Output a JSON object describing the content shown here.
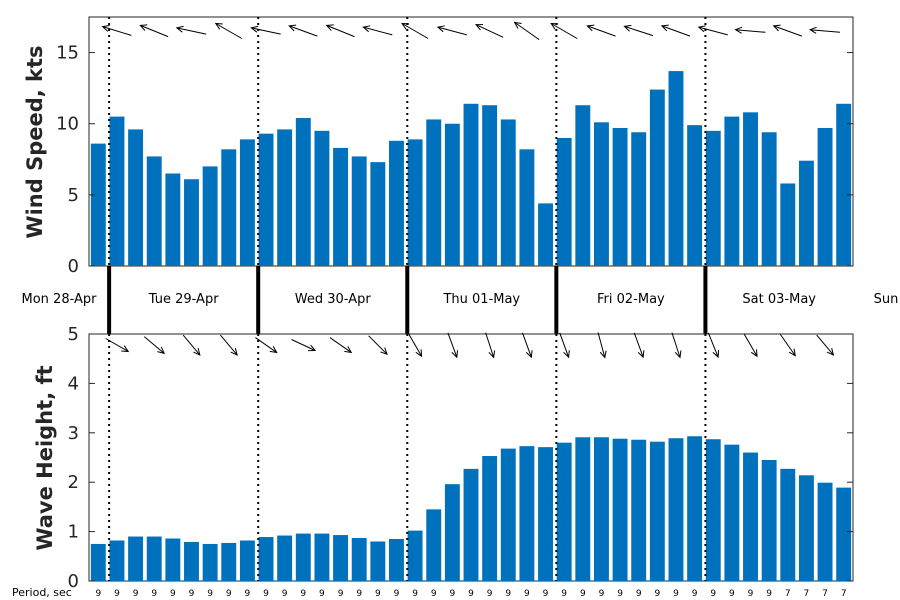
{
  "chart_data": [
    {
      "type": "bar",
      "ylabel": "Wind Speed, kts",
      "ylim": [
        0,
        17.5
      ],
      "yticks": [
        0,
        5,
        10,
        15
      ],
      "color": "#0072BD",
      "values": [
        8.6,
        10.5,
        9.6,
        7.7,
        6.5,
        6.1,
        7.0,
        8.2,
        8.9,
        9.3,
        9.6,
        10.4,
        9.5,
        8.3,
        7.7,
        7.3,
        8.8,
        8.9,
        10.3,
        10.0,
        11.4,
        11.3,
        10.3,
        8.2,
        4.4,
        9.0,
        11.3,
        10.1,
        9.7,
        9.4,
        12.4,
        13.7,
        9.9,
        9.5,
        10.5,
        10.8,
        9.4,
        5.8,
        7.4,
        9.7,
        11.4
      ],
      "arrow_direction": "from east (pointing west)",
      "grid": false
    },
    {
      "type": "bar",
      "ylabel": "Wave Height, ft",
      "ylim": [
        0,
        5
      ],
      "yticks": [
        0,
        1,
        2,
        3,
        4,
        5
      ],
      "color": "#0072BD",
      "values": [
        0.75,
        0.82,
        0.9,
        0.9,
        0.86,
        0.79,
        0.75,
        0.77,
        0.82,
        0.89,
        0.92,
        0.96,
        0.96,
        0.93,
        0.87,
        0.8,
        0.85,
        1.02,
        1.45,
        1.96,
        2.27,
        2.53,
        2.68,
        2.73,
        2.71,
        2.8,
        2.91,
        2.91,
        2.88,
        2.86,
        2.82,
        2.89,
        2.93,
        2.87,
        2.76,
        2.6,
        2.45,
        2.27,
        2.14,
        1.99,
        1.89
      ],
      "arrow_direction": "toward north-east",
      "grid": false
    }
  ],
  "days": [
    "Mon 28-Apr",
    "Tue 29-Apr",
    "Wed 30-Apr",
    "Thu 01-May",
    "Fri 02-May",
    "Sat 03-May",
    "Sun"
  ],
  "period": {
    "title": "Period, sec",
    "values": [
      "9",
      "9",
      "9",
      "9",
      "9",
      "9",
      "9",
      "9",
      "9",
      "9",
      "9",
      "9",
      "9",
      "9",
      "9",
      "9",
      "9",
      "9",
      "9",
      "9",
      "9",
      "9",
      "9",
      "9",
      "9",
      "9",
      "9",
      "9",
      "9",
      "9",
      "9",
      "9",
      "9",
      "9",
      "9",
      "9",
      "9",
      "7",
      "7",
      "7",
      "7"
    ]
  },
  "wind_arrow_angles": [
    165,
    163,
    170,
    158,
    163,
    168,
    160,
    150,
    172,
    168,
    165,
    160,
    150,
    158,
    162,
    165,
    155,
    150,
    160,
    165,
    158,
    155,
    150,
    145,
    160,
    150,
    165,
    160,
    158,
    162,
    170,
    160,
    175,
    165,
    170,
    175,
    165,
    160,
    170,
    175,
    168
  ],
  "wave_arrow_angles": [
    -35,
    -30,
    -35,
    -40,
    -45,
    -50,
    -45,
    -50,
    -40,
    -35,
    -30,
    -25,
    -30,
    -35,
    -40,
    -45,
    -50,
    -60,
    -65,
    -70,
    -70,
    -72,
    -72,
    -70,
    -68,
    -70,
    -72,
    -75,
    -72,
    -70,
    -70,
    -72,
    -70,
    -68,
    -65,
    -60,
    -60,
    -55,
    -55,
    -50,
    -50
  ]
}
